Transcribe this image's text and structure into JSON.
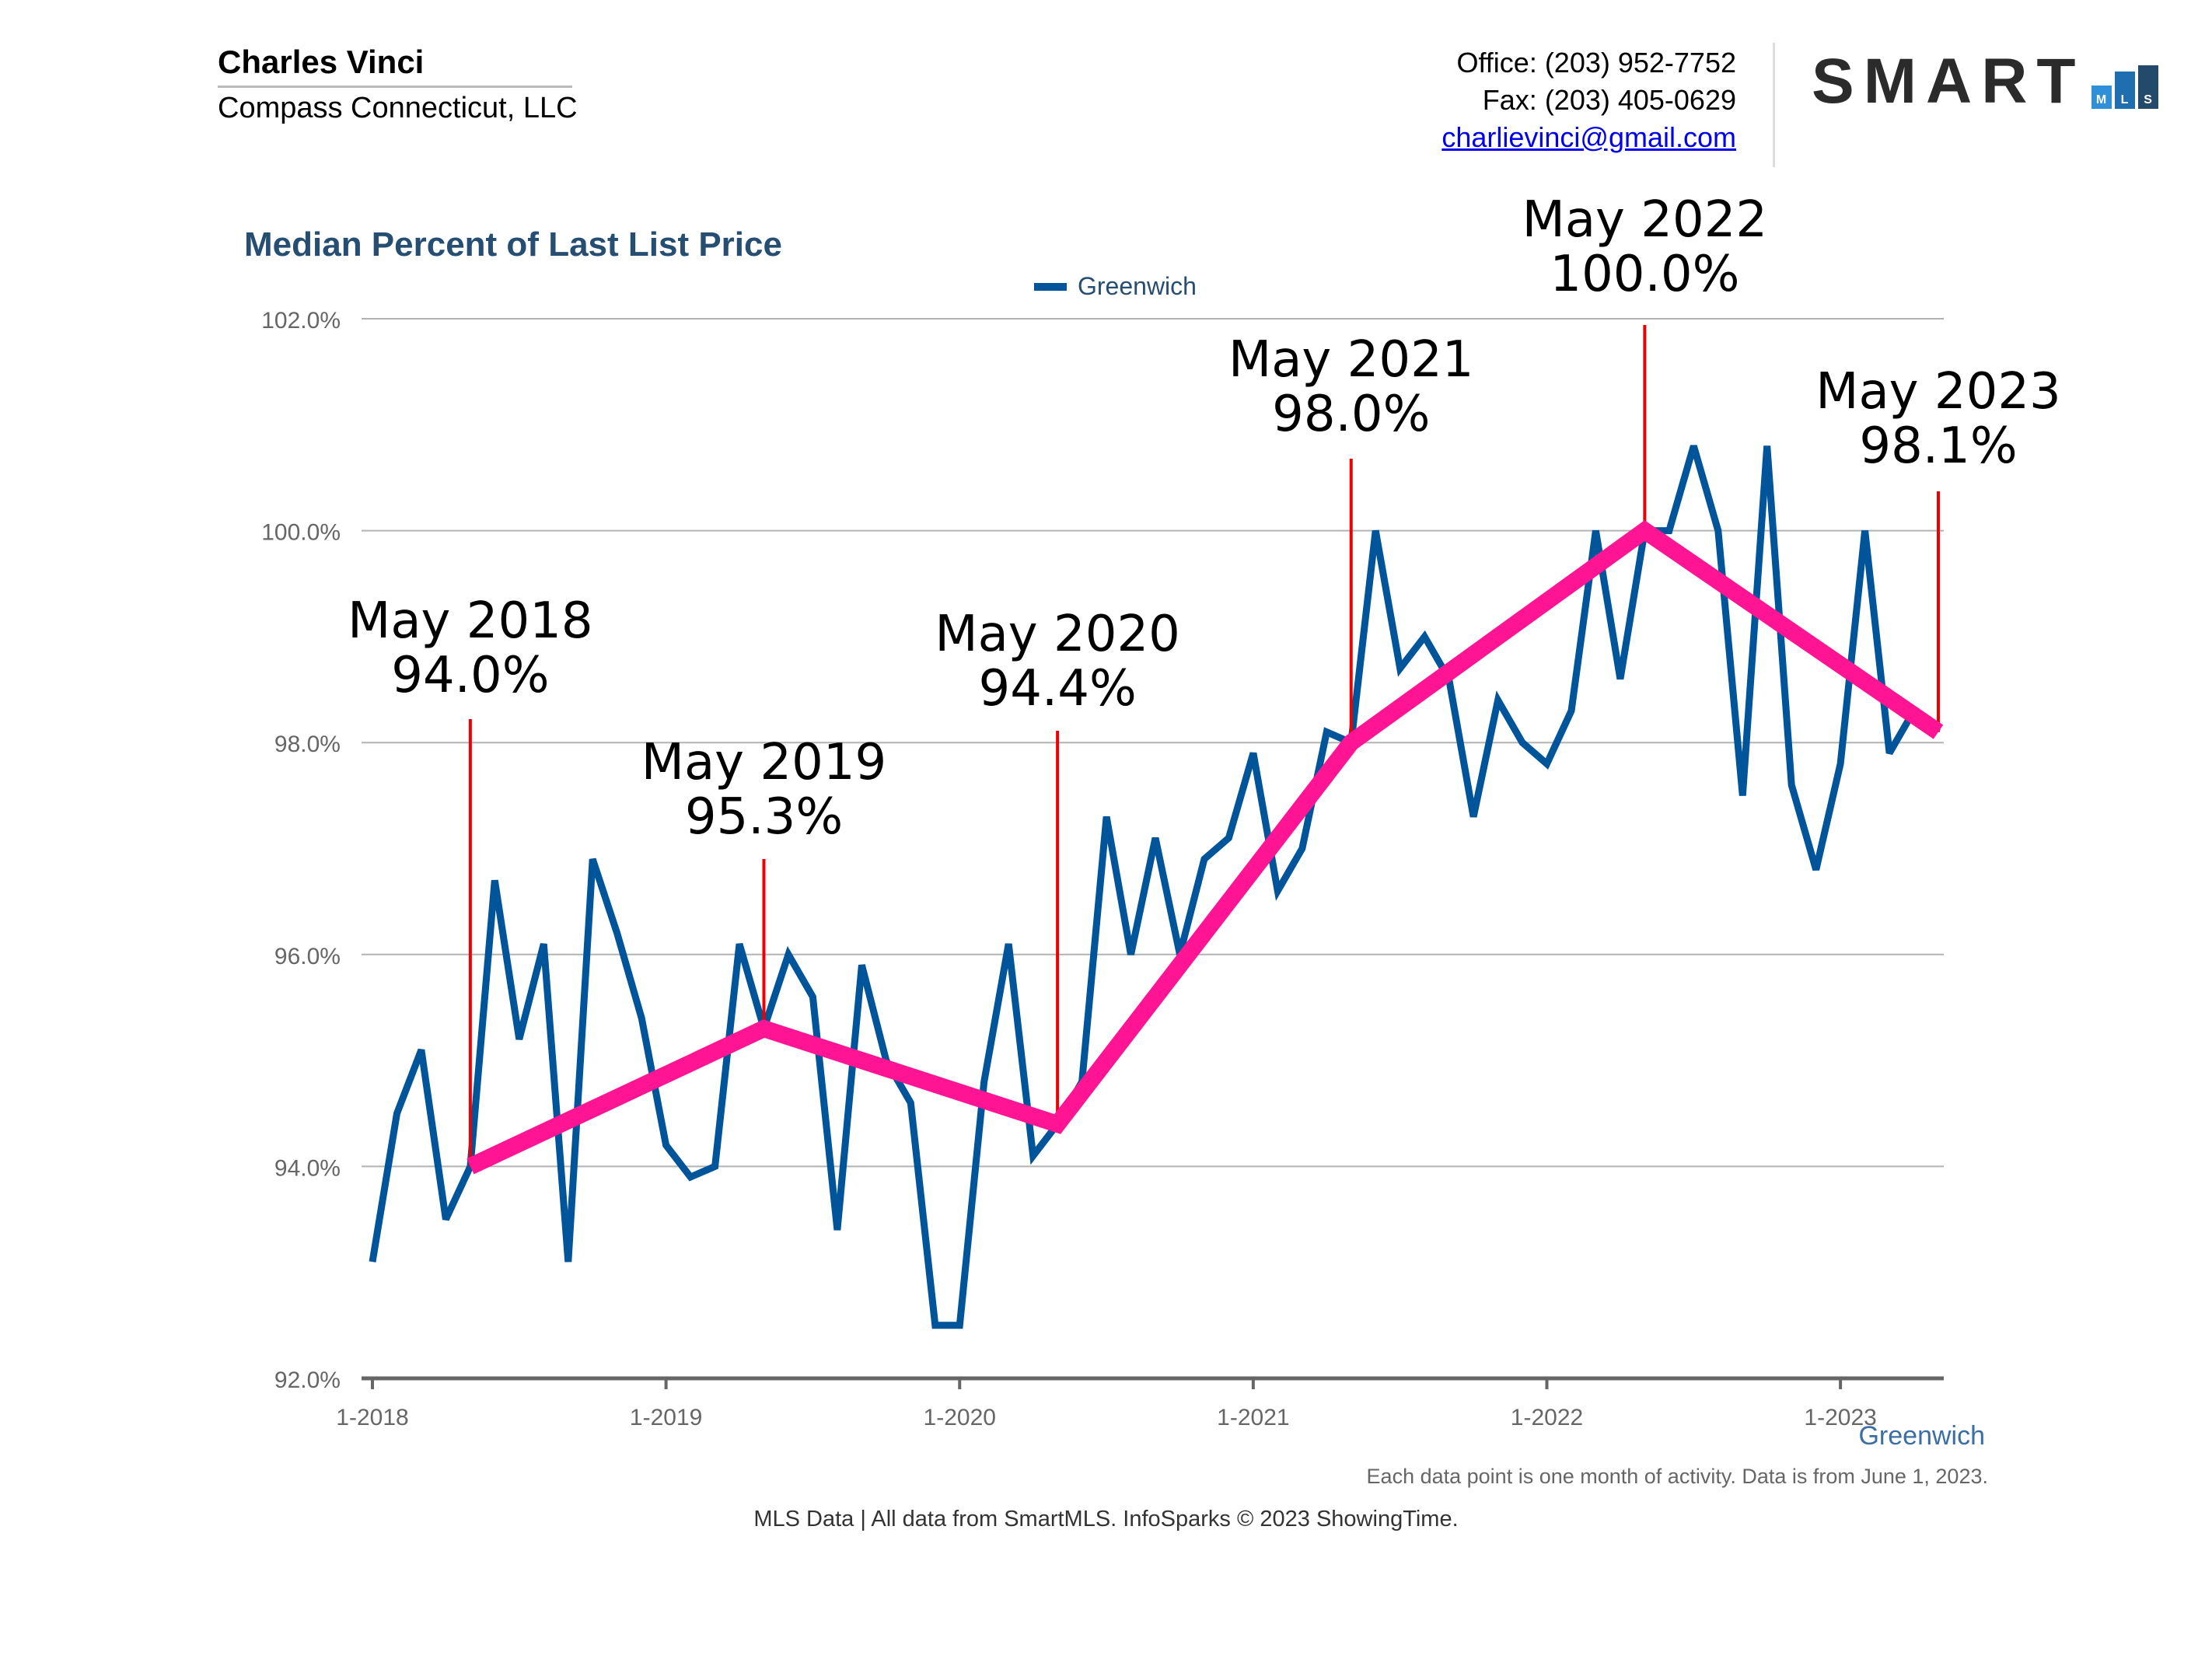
{
  "header": {
    "agent_name": "Charles Vinci",
    "company": "Compass Connecticut, LLC",
    "office": "Office: (203) 952-7752",
    "fax": "Fax: (203) 405-0629",
    "email": "charlievinci@gmail.com"
  },
  "logo": {
    "text": "SMART",
    "boxes": [
      "M",
      "L",
      "S"
    ]
  },
  "legend": {
    "label": "Greenwich"
  },
  "region_label": "Greenwich",
  "footnote": "Each data point is one month of activity. Data is from June 1, 2023.",
  "credits": "MLS Data | All data from SmartMLS. InfoSparks © 2023 ShowingTime.",
  "colors": {
    "series": "#00549a",
    "trend": "#ff1493",
    "marker": "#ee0000",
    "title": "#264e73",
    "grid": "#b3b3b3"
  },
  "chart_data": {
    "type": "line",
    "title": "Median Percent of Last List Price",
    "xlabel": "",
    "ylabel": "",
    "ylim": [
      92.0,
      102.0
    ],
    "yticks": [
      "92.0%",
      "94.0%",
      "96.0%",
      "98.0%",
      "100.0%",
      "102.0%"
    ],
    "yticks_values": [
      92,
      94,
      96,
      98,
      100,
      102
    ],
    "xlim": [
      "2018-01",
      "2023-05"
    ],
    "xticks": [
      "1-2018",
      "1-2019",
      "1-2020",
      "1-2021",
      "1-2022",
      "1-2023"
    ],
    "xticks_values": [
      "2018-01",
      "2019-01",
      "2020-01",
      "2021-01",
      "2022-01",
      "2023-01"
    ],
    "grid": true,
    "legend_position": "top-center",
    "series": [
      {
        "name": "Greenwich",
        "x": [
          "2018-01",
          "2018-02",
          "2018-03",
          "2018-04",
          "2018-05",
          "2018-06",
          "2018-07",
          "2018-08",
          "2018-09",
          "2018-10",
          "2018-11",
          "2018-12",
          "2019-01",
          "2019-02",
          "2019-03",
          "2019-04",
          "2019-05",
          "2019-06",
          "2019-07",
          "2019-08",
          "2019-09",
          "2019-10",
          "2019-11",
          "2019-12",
          "2020-01",
          "2020-02",
          "2020-03",
          "2020-04",
          "2020-05",
          "2020-06",
          "2020-07",
          "2020-08",
          "2020-09",
          "2020-10",
          "2020-11",
          "2020-12",
          "2021-01",
          "2021-02",
          "2021-03",
          "2021-04",
          "2021-05",
          "2021-06",
          "2021-07",
          "2021-08",
          "2021-09",
          "2021-10",
          "2021-11",
          "2021-12",
          "2022-01",
          "2022-02",
          "2022-03",
          "2022-04",
          "2022-05",
          "2022-06",
          "2022-07",
          "2022-08",
          "2022-09",
          "2022-10",
          "2022-11",
          "2022-12",
          "2023-01",
          "2023-02",
          "2023-03",
          "2023-04",
          "2023-05"
        ],
        "values": [
          93.1,
          94.5,
          95.1,
          93.5,
          94.0,
          96.7,
          95.2,
          96.1,
          93.1,
          96.9,
          96.2,
          95.4,
          94.2,
          93.9,
          94.0,
          96.1,
          95.3,
          96.0,
          95.6,
          93.4,
          95.9,
          95.0,
          94.6,
          92.5,
          92.5,
          94.8,
          96.1,
          94.1,
          94.4,
          94.8,
          97.3,
          96.0,
          97.1,
          96.0,
          96.9,
          97.1,
          97.9,
          96.6,
          97.0,
          98.1,
          98.0,
          100.0,
          98.7,
          99.0,
          98.6,
          97.3,
          98.4,
          98.0,
          97.8,
          98.3,
          100.0,
          98.6,
          100.0,
          100.0,
          100.8,
          100.0,
          97.5,
          100.8,
          97.6,
          96.8,
          97.8,
          100.0,
          97.9,
          98.3,
          98.1
        ]
      },
      {
        "name": "",
        "x": [
          "2018-05",
          "2019-05",
          "2020-05",
          "2021-05",
          "2022-05",
          "2023-05"
        ],
        "values": [
          94.0,
          95.3,
          94.4,
          98.0,
          100.0,
          98.1
        ]
      }
    ],
    "annotations": [
      {
        "x": "2018-05",
        "line1": "May 2018",
        "line2": "94.0%"
      },
      {
        "x": "2019-05",
        "line1": "May 2019",
        "line2": "95.3%"
      },
      {
        "x": "2020-05",
        "line1": "May 2020",
        "line2": "94.4%"
      },
      {
        "x": "2021-05",
        "line1": "May 2021",
        "line2": "98.0%"
      },
      {
        "x": "2022-05",
        "line1": "May 2022",
        "line2": "100.0%"
      },
      {
        "x": "2023-05",
        "line1": "May 2023",
        "line2": "98.1%"
      }
    ]
  }
}
